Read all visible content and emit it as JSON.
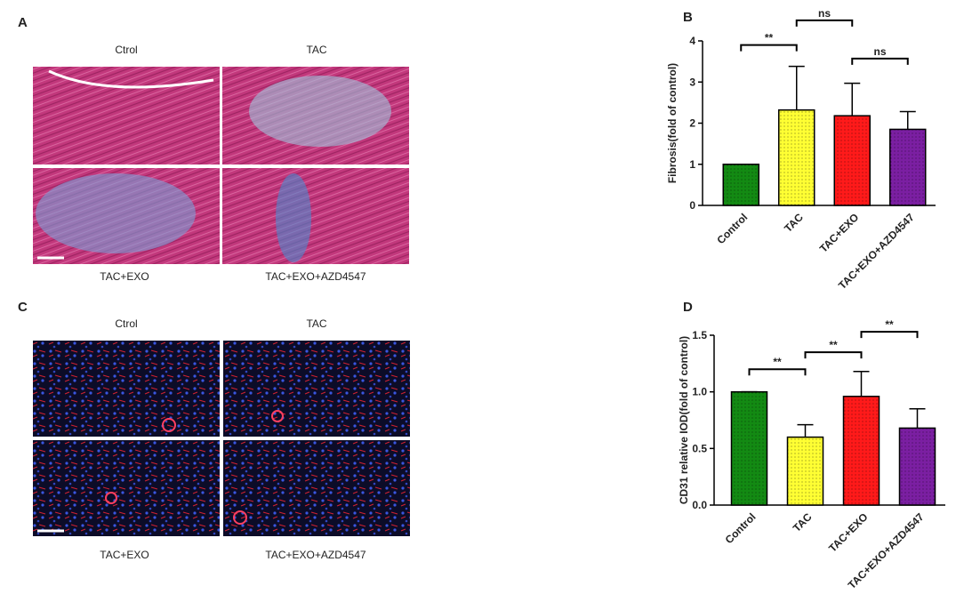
{
  "images": [
    {
      "panel": "A",
      "labels": [
        "Ctrol",
        "TAC",
        "TAC+EXO",
        "TAC+EXO+AZD4547"
      ]
    },
    {
      "panel": "C",
      "labels": [
        "Ctrol",
        "TAC",
        "TAC+EXO",
        "TAC+EXO+AZD4547"
      ]
    }
  ],
  "chart_data": [
    {
      "type": "bar",
      "panel": "B",
      "ylabel": "Fibrosis(fold of control)",
      "categories": [
        "Control",
        "TAC",
        "TAC+EXO",
        "TAC+EXO+AZD4547"
      ],
      "values": [
        1.0,
        2.32,
        2.18,
        1.85
      ],
      "errors": [
        0,
        1.06,
        0.79,
        0.43
      ],
      "colors": [
        "#138a13",
        "#ffff33",
        "#ff1a1a",
        "#7b1fa2"
      ],
      "ylim": [
        0,
        4
      ],
      "yticks": [
        0,
        1,
        2,
        3,
        4
      ],
      "annotations": [
        {
          "from": 0,
          "to": 1,
          "y": 3.9,
          "label": "**"
        },
        {
          "from": 1,
          "to": 2,
          "y": 4.5,
          "label": "ns"
        },
        {
          "from": 2,
          "to": 3,
          "y": 3.57,
          "label": "ns"
        }
      ]
    },
    {
      "type": "bar",
      "panel": "D",
      "ylabel": "CD31 relative IOD(fold of control)",
      "categories": [
        "Control",
        "TAC",
        "TAC+EXO",
        "TAC+EXO+AZD4547"
      ],
      "values": [
        1.0,
        0.6,
        0.96,
        0.68
      ],
      "errors": [
        0,
        0.11,
        0.22,
        0.17
      ],
      "colors": [
        "#138a13",
        "#ffff33",
        "#ff1a1a",
        "#7b1fa2"
      ],
      "ylim": [
        0,
        1.5
      ],
      "yticks": [
        {
          "value": 0,
          "label": "0.0"
        },
        {
          "value": 0.5,
          "label": "0.5"
        },
        {
          "value": 1,
          "label": "1.0"
        },
        {
          "value": 1.5,
          "label": "1.5"
        }
      ],
      "annotations": [
        {
          "from": 0,
          "to": 1,
          "y": 1.2,
          "label": "**"
        },
        {
          "from": 1,
          "to": 2,
          "y": 1.35,
          "label": "**"
        },
        {
          "from": 2,
          "to": 3,
          "y": 1.53,
          "label": "**"
        }
      ]
    }
  ]
}
